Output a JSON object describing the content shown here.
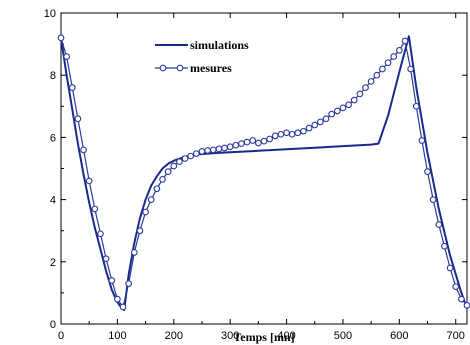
{
  "chart_data": {
    "type": "line",
    "title": "",
    "xlabel": "Temps [mn]",
    "ylabel": "",
    "xlim": [
      0,
      720
    ],
    "ylim": [
      0,
      10
    ],
    "xticks": [
      0,
      100,
      200,
      300,
      400,
      500,
      600,
      700
    ],
    "yticks": [
      0,
      2,
      4,
      6,
      8,
      10
    ],
    "grid": false,
    "legend": "top-center",
    "series": [
      {
        "name": "simulations",
        "color": "#1a2a8c",
        "marker": "none",
        "x": [
          0,
          10,
          20,
          30,
          40,
          50,
          60,
          70,
          80,
          90,
          100,
          108,
          112,
          120,
          130,
          140,
          150,
          160,
          170,
          180,
          190,
          200,
          220,
          240,
          260,
          280,
          300,
          350,
          400,
          450,
          500,
          550,
          563,
          580,
          600,
          617,
          630,
          650,
          670,
          690,
          710,
          718
        ],
        "y": [
          9.2,
          8.0,
          6.9,
          5.8,
          4.8,
          3.9,
          3.1,
          2.4,
          1.7,
          1.1,
          0.7,
          0.5,
          0.45,
          1.6,
          2.6,
          3.4,
          4.0,
          4.45,
          4.75,
          5.0,
          5.15,
          5.25,
          5.38,
          5.45,
          5.48,
          5.5,
          5.52,
          5.57,
          5.62,
          5.67,
          5.72,
          5.77,
          5.8,
          6.7,
          8.1,
          9.25,
          7.6,
          5.5,
          3.7,
          2.2,
          1.0,
          0.6
        ]
      },
      {
        "name": "mesures",
        "color": "#2a3a9c",
        "marker": "circle",
        "x": [
          0,
          10,
          20,
          30,
          40,
          50,
          60,
          70,
          80,
          90,
          100,
          110,
          120,
          130,
          140,
          150,
          160,
          170,
          180,
          190,
          200,
          210,
          220,
          230,
          240,
          250,
          260,
          270,
          280,
          290,
          300,
          310,
          320,
          330,
          340,
          350,
          360,
          370,
          380,
          390,
          400,
          410,
          420,
          430,
          440,
          450,
          460,
          470,
          480,
          490,
          500,
          510,
          520,
          530,
          540,
          550,
          560,
          570,
          580,
          590,
          600,
          610,
          620,
          630,
          640,
          650,
          660,
          670,
          680,
          690,
          700,
          710,
          720
        ],
        "y": [
          9.2,
          8.6,
          7.6,
          6.6,
          5.6,
          4.6,
          3.7,
          2.9,
          2.1,
          1.4,
          0.8,
          0.55,
          1.3,
          2.3,
          3.0,
          3.6,
          4.0,
          4.35,
          4.65,
          4.9,
          5.08,
          5.22,
          5.32,
          5.4,
          5.48,
          5.55,
          5.58,
          5.6,
          5.63,
          5.66,
          5.7,
          5.75,
          5.8,
          5.85,
          5.9,
          5.82,
          5.88,
          5.95,
          6.05,
          6.1,
          6.15,
          6.1,
          6.15,
          6.2,
          6.3,
          6.4,
          6.5,
          6.6,
          6.75,
          6.85,
          6.95,
          7.05,
          7.2,
          7.4,
          7.6,
          7.8,
          8.0,
          8.2,
          8.4,
          8.6,
          8.8,
          9.1,
          8.2,
          7.0,
          5.9,
          4.9,
          4.0,
          3.2,
          2.5,
          1.8,
          1.2,
          0.8,
          0.6
        ]
      }
    ]
  },
  "legend": {
    "simulations": "simulations",
    "mesures": "mesures"
  }
}
